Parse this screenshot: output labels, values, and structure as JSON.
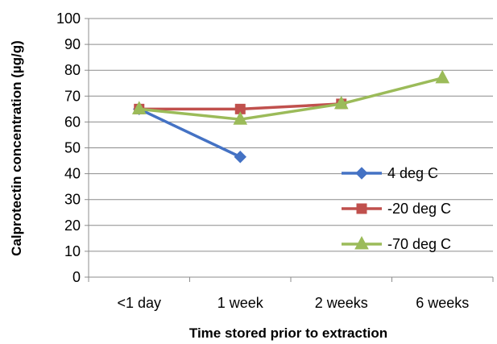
{
  "chart_data": {
    "type": "line",
    "title": "",
    "xlabel": "Time stored prior to extraction",
    "ylabel": "Calprotectin concentration (µg/g)",
    "categories": [
      "<1 day",
      "1 week",
      "2 weeks",
      "6 weeks"
    ],
    "yticks": [
      "0",
      "10",
      "20",
      "30",
      "40",
      "50",
      "60",
      "70",
      "80",
      "90",
      "100"
    ],
    "ylim": [
      0,
      100
    ],
    "grid": "horizontal",
    "legend_position": "right",
    "series": [
      {
        "name": "4 deg C",
        "values": [
          65,
          46.5,
          null,
          null
        ],
        "color": "#4472c4",
        "marker": "diamond"
      },
      {
        "name": "-20 deg C",
        "values": [
          65,
          65,
          67,
          null
        ],
        "color": "#c0504d",
        "marker": "square"
      },
      {
        "name": "-70 deg C",
        "values": [
          65,
          61,
          67,
          77
        ],
        "color": "#9bbb59",
        "marker": "triangle"
      }
    ]
  }
}
